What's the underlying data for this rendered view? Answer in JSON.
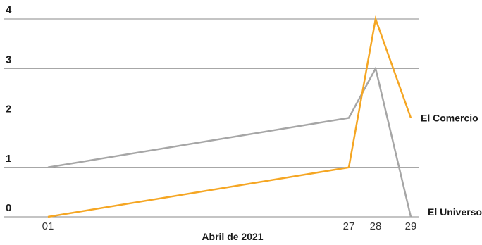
{
  "chart_data": {
    "type": "line",
    "title": "",
    "xlabel": "Abril de 2021",
    "ylabel": "",
    "x": [
      "01",
      "27",
      "28",
      "29"
    ],
    "y_ticks": [
      "0",
      "1",
      "2",
      "3",
      "4"
    ],
    "ylim": [
      0,
      4
    ],
    "grid": true,
    "legend": "inline-right",
    "series": [
      {
        "name": "El Comercio",
        "values": [
          0,
          1,
          4,
          2
        ],
        "color": "#f5a623"
      },
      {
        "name": "El Universo",
        "values": [
          1,
          2,
          3,
          0
        ],
        "color": "#a6a6a6"
      }
    ]
  }
}
